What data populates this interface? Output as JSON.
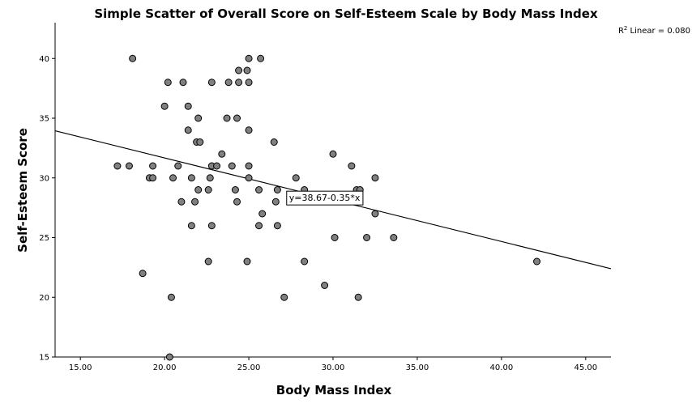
{
  "chart_data": {
    "type": "scatter",
    "title": "Simple Scatter of Overall Score on Self-Esteem Scale by Body Mass Index",
    "xlabel": "Body Mass Index",
    "ylabel": "Self-Esteem Score",
    "xlim": [
      13.5,
      46.5
    ],
    "ylim": [
      15,
      43
    ],
    "xticks": [
      15,
      20,
      25,
      30,
      35,
      40,
      45
    ],
    "xtick_labels": [
      "15.00",
      "20.00",
      "25.00",
      "30.00",
      "35.00",
      "40.00",
      "45.00"
    ],
    "yticks": [
      15,
      20,
      25,
      30,
      35,
      40
    ],
    "ytick_labels": [
      "15",
      "20",
      "25",
      "30",
      "35",
      "40"
    ],
    "r2_prefix": "R",
    "r2_superscript": "2",
    "r2_text": " Linear = 0.080",
    "fit": {
      "intercept": 38.67,
      "slope": -0.35,
      "label": "y=38.67-0.35*x",
      "label_x": 29.5
    },
    "point_color": "#808080",
    "points": [
      {
        "x": 18.1,
        "y": 40
      },
      {
        "x": 25.0,
        "y": 40
      },
      {
        "x": 25.7,
        "y": 40
      },
      {
        "x": 24.4,
        "y": 39
      },
      {
        "x": 24.9,
        "y": 39
      },
      {
        "x": 20.2,
        "y": 38
      },
      {
        "x": 21.1,
        "y": 38
      },
      {
        "x": 22.8,
        "y": 38
      },
      {
        "x": 23.8,
        "y": 38
      },
      {
        "x": 24.4,
        "y": 38
      },
      {
        "x": 25.0,
        "y": 38
      },
      {
        "x": 20.0,
        "y": 36
      },
      {
        "x": 21.4,
        "y": 36
      },
      {
        "x": 22.0,
        "y": 35
      },
      {
        "x": 23.7,
        "y": 35
      },
      {
        "x": 24.3,
        "y": 35
      },
      {
        "x": 21.4,
        "y": 34
      },
      {
        "x": 25.0,
        "y": 34
      },
      {
        "x": 21.9,
        "y": 33
      },
      {
        "x": 22.1,
        "y": 33
      },
      {
        "x": 26.5,
        "y": 33
      },
      {
        "x": 23.4,
        "y": 32
      },
      {
        "x": 30.0,
        "y": 32
      },
      {
        "x": 17.2,
        "y": 31
      },
      {
        "x": 17.9,
        "y": 31
      },
      {
        "x": 19.3,
        "y": 31
      },
      {
        "x": 20.8,
        "y": 31
      },
      {
        "x": 22.8,
        "y": 31
      },
      {
        "x": 23.1,
        "y": 31
      },
      {
        "x": 24.0,
        "y": 31
      },
      {
        "x": 25.0,
        "y": 31
      },
      {
        "x": 31.1,
        "y": 31
      },
      {
        "x": 19.1,
        "y": 30
      },
      {
        "x": 19.3,
        "y": 30
      },
      {
        "x": 20.5,
        "y": 30
      },
      {
        "x": 21.6,
        "y": 30
      },
      {
        "x": 22.7,
        "y": 30
      },
      {
        "x": 25.0,
        "y": 30
      },
      {
        "x": 27.8,
        "y": 30
      },
      {
        "x": 32.5,
        "y": 30
      },
      {
        "x": 22.0,
        "y": 29
      },
      {
        "x": 22.6,
        "y": 29
      },
      {
        "x": 24.2,
        "y": 29
      },
      {
        "x": 25.6,
        "y": 29
      },
      {
        "x": 26.7,
        "y": 29
      },
      {
        "x": 28.3,
        "y": 29
      },
      {
        "x": 31.4,
        "y": 29
      },
      {
        "x": 31.6,
        "y": 29
      },
      {
        "x": 21.0,
        "y": 28
      },
      {
        "x": 21.8,
        "y": 28
      },
      {
        "x": 24.3,
        "y": 28
      },
      {
        "x": 26.6,
        "y": 28
      },
      {
        "x": 25.8,
        "y": 27
      },
      {
        "x": 32.5,
        "y": 27
      },
      {
        "x": 21.6,
        "y": 26
      },
      {
        "x": 22.8,
        "y": 26
      },
      {
        "x": 25.6,
        "y": 26
      },
      {
        "x": 26.7,
        "y": 26
      },
      {
        "x": 30.1,
        "y": 25
      },
      {
        "x": 32.0,
        "y": 25
      },
      {
        "x": 33.6,
        "y": 25
      },
      {
        "x": 22.6,
        "y": 23
      },
      {
        "x": 24.9,
        "y": 23
      },
      {
        "x": 28.3,
        "y": 23
      },
      {
        "x": 42.1,
        "y": 23
      },
      {
        "x": 18.7,
        "y": 22
      },
      {
        "x": 29.5,
        "y": 21
      },
      {
        "x": 20.4,
        "y": 20
      },
      {
        "x": 27.1,
        "y": 20
      },
      {
        "x": 31.5,
        "y": 20
      },
      {
        "x": 20.3,
        "y": 15
      }
    ]
  }
}
